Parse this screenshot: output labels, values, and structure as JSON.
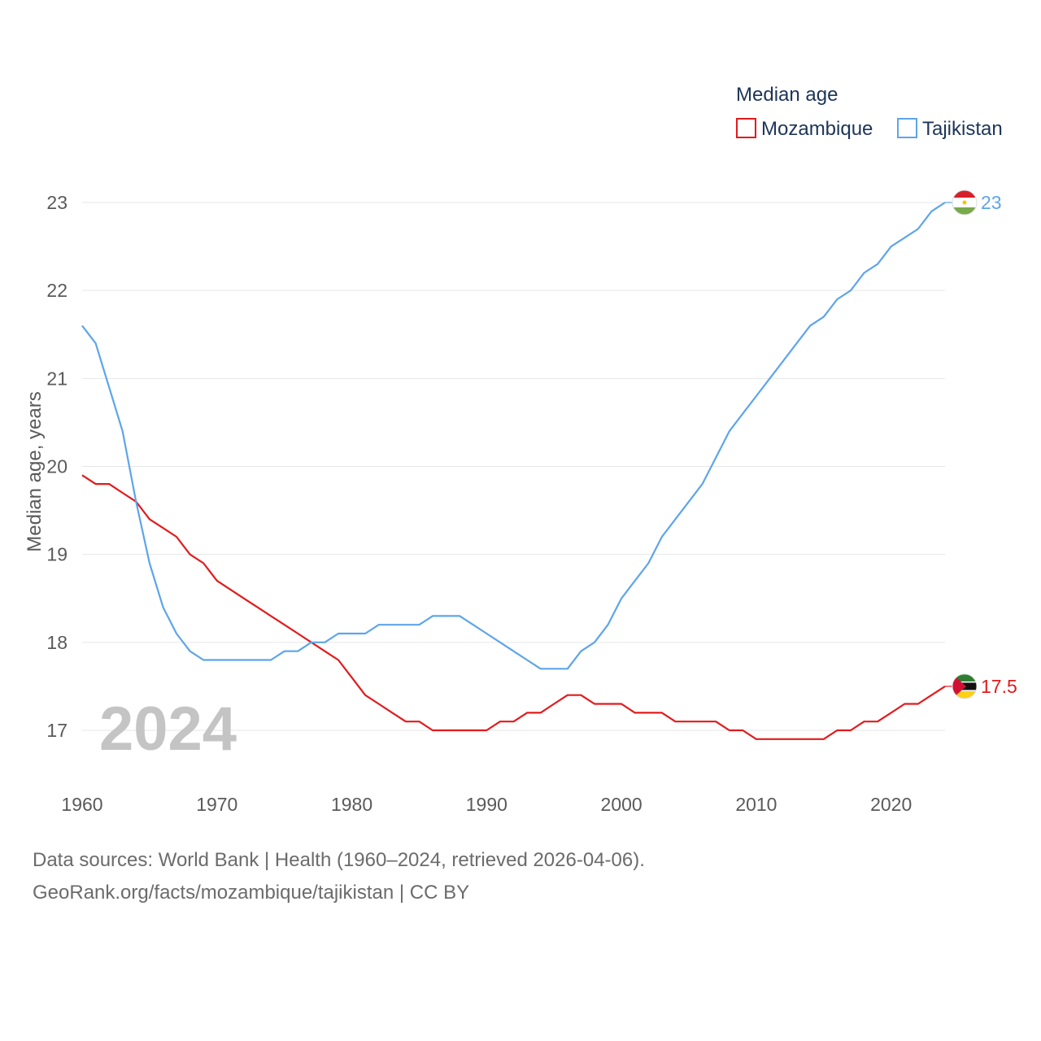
{
  "chart_data": {
    "type": "line",
    "title": "Median age",
    "ylabel": "Median age, years",
    "xlabel": "",
    "xlim": [
      1960,
      2024
    ],
    "ylim": [
      16.5,
      23.3
    ],
    "x_ticks": [
      1960,
      1970,
      1980,
      1990,
      2000,
      2010,
      2020
    ],
    "y_ticks": [
      17,
      18,
      19,
      20,
      21,
      22,
      23
    ],
    "grid": true,
    "current_year": "2024",
    "legend_position": "top-right",
    "x": [
      1960,
      1961,
      1962,
      1963,
      1964,
      1965,
      1966,
      1967,
      1968,
      1969,
      1970,
      1971,
      1972,
      1973,
      1974,
      1975,
      1976,
      1977,
      1978,
      1979,
      1980,
      1981,
      1982,
      1983,
      1984,
      1985,
      1986,
      1987,
      1988,
      1989,
      1990,
      1991,
      1992,
      1993,
      1994,
      1995,
      1996,
      1997,
      1998,
      1999,
      2000,
      2001,
      2002,
      2003,
      2004,
      2005,
      2006,
      2007,
      2008,
      2009,
      2010,
      2011,
      2012,
      2013,
      2014,
      2015,
      2016,
      2017,
      2018,
      2019,
      2020,
      2021,
      2022,
      2023,
      2024
    ],
    "series": [
      {
        "name": "Mozambique",
        "color": "#e31a1c",
        "end_label": "17.5",
        "values": [
          19.9,
          19.8,
          19.8,
          19.7,
          19.6,
          19.4,
          19.3,
          19.2,
          19.0,
          18.9,
          18.7,
          18.6,
          18.5,
          18.4,
          18.3,
          18.2,
          18.1,
          18.0,
          17.9,
          17.8,
          17.6,
          17.4,
          17.3,
          17.2,
          17.1,
          17.1,
          17.0,
          17.0,
          17.0,
          17.0,
          17.0,
          17.1,
          17.1,
          17.2,
          17.2,
          17.3,
          17.4,
          17.4,
          17.3,
          17.3,
          17.3,
          17.2,
          17.2,
          17.2,
          17.1,
          17.1,
          17.1,
          17.1,
          17.0,
          17.0,
          16.9,
          16.9,
          16.9,
          16.9,
          16.9,
          16.9,
          17.0,
          17.0,
          17.1,
          17.1,
          17.2,
          17.3,
          17.3,
          17.4,
          17.5
        ]
      },
      {
        "name": "Tajikistan",
        "color": "#5da5e8",
        "end_label": "23",
        "values": [
          21.6,
          21.4,
          20.9,
          20.4,
          19.6,
          18.9,
          18.4,
          18.1,
          17.9,
          17.8,
          17.8,
          17.8,
          17.8,
          17.8,
          17.8,
          17.9,
          17.9,
          18.0,
          18.0,
          18.1,
          18.1,
          18.1,
          18.2,
          18.2,
          18.2,
          18.2,
          18.3,
          18.3,
          18.3,
          18.2,
          18.1,
          18.0,
          17.9,
          17.8,
          17.7,
          17.7,
          17.7,
          17.9,
          18.0,
          18.2,
          18.5,
          18.7,
          18.9,
          19.2,
          19.4,
          19.6,
          19.8,
          20.1,
          20.4,
          20.6,
          20.8,
          21.0,
          21.2,
          21.4,
          21.6,
          21.7,
          21.9,
          22.0,
          22.2,
          22.3,
          22.5,
          22.6,
          22.7,
          22.9,
          23.0
        ]
      }
    ]
  },
  "footer": {
    "line1": "Data sources: World Bank | Health (1960–2024, retrieved 2026-04-06).",
    "line2": "GeoRank.org/facts/mozambique/tajikistan | CC BY"
  }
}
